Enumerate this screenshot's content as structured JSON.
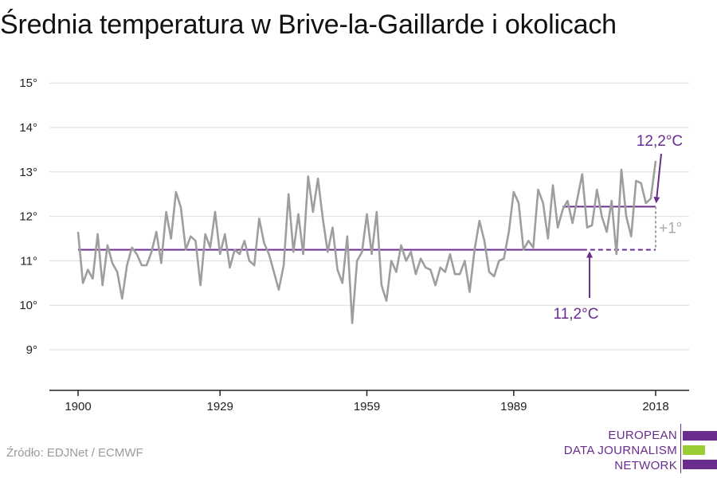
{
  "title": "Średnia temperatura w Brive-la-Gaillarde i okolicach",
  "source": "Źródło: EDJNet / ECMWF",
  "logo": {
    "lines": [
      "EUROPEAN",
      "DATA JOURNALISM",
      "NETWORK"
    ]
  },
  "colors": {
    "series": "#9e9e9e",
    "accent": "#6a2c8f",
    "logo_green": "#9acd32",
    "grid": "#dddddd"
  },
  "chart_data": {
    "type": "line",
    "title": "Średnia temperatura w Brive-la-Gaillarde i okolicach",
    "xlabel": "",
    "ylabel": "",
    "xlim": [
      1900,
      2018
    ],
    "ylim": [
      9,
      15
    ],
    "x_ticks": [
      1900,
      1929,
      1959,
      1989,
      2018
    ],
    "x_tick_labels": [
      "1900",
      "1929",
      "1959",
      "1989",
      "2018"
    ],
    "y_ticks": [
      9,
      10,
      11,
      12,
      13,
      14,
      15
    ],
    "y_tick_labels": [
      "9°",
      "10°",
      "11°",
      "12°",
      "13°",
      "14°",
      "15°"
    ],
    "grid": true,
    "series": [
      {
        "values_start_year": 1900,
        "x": [
          1900,
          1901,
          1902,
          1903,
          1904,
          1905,
          1906,
          1907,
          1908,
          1909,
          1910,
          1911,
          1912,
          1913,
          1914,
          1915,
          1916,
          1917,
          1918,
          1919,
          1920,
          1921,
          1922,
          1923,
          1924,
          1925,
          1926,
          1927,
          1928,
          1929,
          1930,
          1931,
          1932,
          1933,
          1934,
          1935,
          1936,
          1937,
          1938,
          1939,
          1940,
          1941,
          1942,
          1943,
          1944,
          1945,
          1946,
          1947,
          1948,
          1949,
          1950,
          1951,
          1952,
          1953,
          1954,
          1955,
          1956,
          1957,
          1958,
          1959,
          1960,
          1961,
          1962,
          1963,
          1964,
          1965,
          1966,
          1967,
          1968,
          1969,
          1970,
          1971,
          1972,
          1973,
          1974,
          1975,
          1976,
          1977,
          1978,
          1979,
          1980,
          1981,
          1982,
          1983,
          1984,
          1985,
          1986,
          1987,
          1988,
          1989,
          1990,
          1991,
          1992,
          1993,
          1994,
          1995,
          1996,
          1997,
          1998,
          1999,
          2000,
          2001,
          2002,
          2003,
          2004,
          2005,
          2006,
          2007,
          2008,
          2009,
          2010,
          2011,
          2012,
          2013,
          2014,
          2015,
          2016,
          2017,
          2018
        ],
        "values": [
          11.65,
          10.5,
          10.8,
          10.6,
          11.6,
          10.45,
          11.35,
          10.95,
          10.75,
          10.15,
          10.9,
          11.3,
          11.15,
          10.9,
          10.9,
          11.2,
          11.65,
          10.95,
          12.1,
          11.5,
          12.55,
          12.2,
          11.25,
          11.55,
          11.45,
          10.45,
          11.6,
          11.3,
          12.1,
          11.15,
          11.6,
          10.85,
          11.25,
          11.15,
          11.45,
          11.0,
          10.9,
          11.95,
          11.4,
          11.15,
          10.75,
          10.35,
          10.9,
          12.5,
          11.2,
          12.05,
          11.15,
          12.9,
          12.1,
          12.85,
          11.95,
          11.2,
          11.75,
          10.8,
          10.5,
          11.55,
          9.6,
          11.0,
          11.2,
          12.05,
          11.15,
          12.1,
          10.45,
          10.1,
          11.0,
          10.75,
          11.35,
          11.0,
          11.2,
          10.7,
          11.05,
          10.85,
          10.8,
          10.45,
          10.85,
          10.75,
          11.15,
          10.7,
          10.7,
          11.0,
          10.3,
          11.25,
          11.9,
          11.45,
          10.75,
          10.65,
          11.0,
          11.05,
          11.65,
          12.55,
          12.3,
          11.25,
          11.45,
          11.3,
          12.6,
          12.3,
          11.5,
          12.7,
          11.75,
          12.15,
          12.35,
          11.85,
          12.4,
          12.95,
          11.75,
          11.8,
          12.6,
          12.0,
          11.65,
          12.35,
          11.15,
          13.05,
          12.0,
          11.55,
          12.8,
          12.75,
          12.3,
          12.4,
          13.25
        ]
      }
    ],
    "reference_lines": [
      {
        "label": "11,2°C",
        "value": 11.25,
        "from": 1900,
        "to": 2018
      },
      {
        "label": "12,2°C",
        "value": 12.22,
        "from": 1999,
        "to": 2018
      }
    ],
    "annotations": {
      "difference": "+1°"
    }
  }
}
